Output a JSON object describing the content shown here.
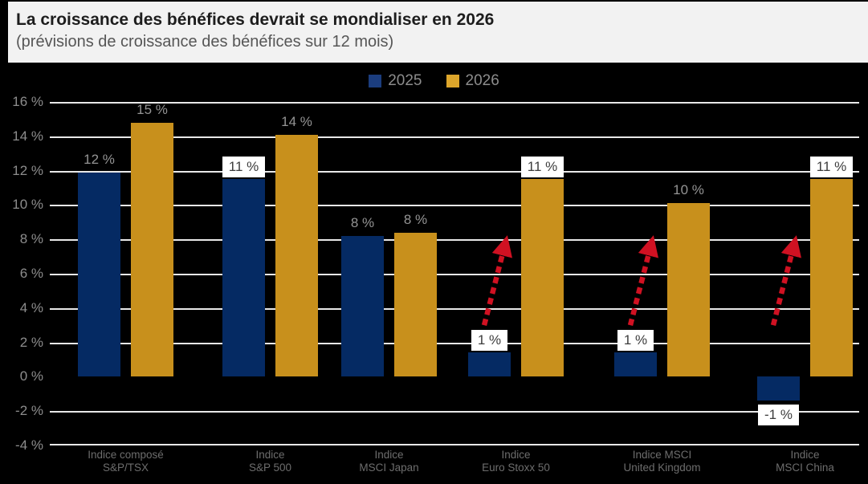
{
  "header": {
    "title": "La croissance des bénéfices devrait se mondialiser en 2026",
    "subtitle": "(prévisions de croissance des bénéfices sur 12 mois)"
  },
  "legend": [
    {
      "label": "2025",
      "color": "#1b3d7e"
    },
    {
      "label": "2026",
      "color": "#dda62b"
    }
  ],
  "colors": {
    "background": "#000000",
    "header_bg": "#f2f2f2",
    "bar_2025": "#052a63",
    "bar_2026": "#c8901c",
    "gridline": "#e8e8e8",
    "arrow_red": "#d01122",
    "axis_text": "#8d8d8d",
    "plain_label_text": "#949494",
    "boxed_label_text": "#3d3d3d",
    "boxed_label_bg": "#ffffff"
  },
  "chart_data": {
    "type": "bar",
    "title": "La croissance des bénéfices devrait se mondialiser en 2026",
    "subtitle": "(prévisions de croissance des bénéfices sur 12 mois)",
    "categories": [
      {
        "line1": "Indice composé",
        "line2": "S&P/TSX"
      },
      {
        "line1": "Indice",
        "line2": "S&P 500"
      },
      {
        "line1": "Indice",
        "line2": "MSCI Japan"
      },
      {
        "line1": "Indice",
        "line2": "Euro Stoxx 50"
      },
      {
        "line1": "Indice MSCI",
        "line2": "United Kingdom"
      },
      {
        "line1": "Indice",
        "line2": "MSCI China"
      }
    ],
    "series": [
      {
        "name": "2025",
        "values": [
          12,
          11,
          8,
          1,
          1,
          -1
        ],
        "labels": [
          "12 %",
          "11 %",
          "8 %",
          "1 %",
          "1 %",
          "-1 %"
        ],
        "plot_values": [
          11.9,
          11.5,
          8.2,
          1.4,
          1.4,
          -1.4
        ],
        "boxed": [
          false,
          true,
          false,
          true,
          true,
          true
        ]
      },
      {
        "name": "2026",
        "values": [
          15,
          14,
          8,
          11,
          10,
          11
        ],
        "labels": [
          "15 %",
          "14 %",
          "8 %",
          "11 %",
          "10 %",
          "11 %"
        ],
        "plot_values": [
          14.8,
          14.1,
          8.4,
          11.5,
          10.1,
          11.5
        ],
        "boxed": [
          false,
          false,
          false,
          true,
          false,
          true
        ]
      }
    ],
    "y_axis": {
      "min": -4,
      "max": 16,
      "step": 2,
      "ticks": [
        16,
        14,
        12,
        10,
        8,
        6,
        4,
        2,
        0,
        -2,
        -4
      ],
      "tick_labels": [
        "16 %",
        "14 %",
        "12 %",
        "10 %",
        "8 %",
        "6 %",
        "4 %",
        "2 %",
        "0 %",
        "-2 %",
        "-4 %"
      ],
      "zero_gridline": false
    },
    "annotations": {
      "up_arrows_at_categories": [
        3,
        4,
        5
      ],
      "style": "dashed-red-up-arrow",
      "arrow_from_pct": 3,
      "arrow_to_pct": 8
    },
    "legend_position": "top-center",
    "grid": true
  }
}
